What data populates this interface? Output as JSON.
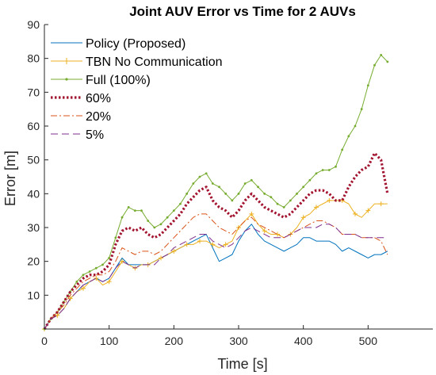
{
  "chart_data": {
    "type": "line",
    "title": "Joint AUV Error vs Time for 2 AUVs",
    "xlabel": "Time [s]",
    "ylabel": "Error [m]",
    "xlim": [
      0,
      600
    ],
    "ylim": [
      0,
      90
    ],
    "xticks": [
      0,
      100,
      200,
      300,
      400,
      500
    ],
    "yticks": [
      10,
      20,
      30,
      40,
      50,
      60,
      70,
      80,
      90
    ],
    "grid": false,
    "legend_position": "top-left",
    "series": [
      {
        "name": "Policy (Proposed)",
        "color": "#0072BD",
        "style": "solid",
        "marker": "none",
        "x": [
          0,
          10,
          20,
          30,
          40,
          50,
          60,
          70,
          80,
          90,
          100,
          110,
          120,
          130,
          140,
          150,
          160,
          170,
          180,
          190,
          200,
          210,
          220,
          230,
          240,
          250,
          260,
          270,
          280,
          290,
          300,
          310,
          320,
          330,
          340,
          350,
          360,
          370,
          380,
          390,
          400,
          410,
          420,
          430,
          440,
          450,
          460,
          470,
          480,
          490,
          500,
          510,
          520,
          530
        ],
        "y": [
          0,
          3,
          4,
          6,
          9,
          11,
          13,
          14,
          15,
          14,
          15,
          18,
          21,
          19,
          19,
          19,
          19,
          20,
          21,
          22,
          23,
          24,
          25,
          26,
          27,
          28,
          24,
          20,
          21,
          22,
          26,
          29,
          31,
          28,
          26,
          25,
          24,
          23,
          24,
          25,
          27,
          27,
          26,
          26,
          26,
          25,
          23,
          24,
          23,
          22,
          21,
          22,
          22,
          23
        ]
      },
      {
        "name": "TBN No Communication",
        "color": "#EDB120",
        "style": "solid",
        "marker": "plus",
        "x": [
          0,
          10,
          20,
          30,
          40,
          50,
          60,
          70,
          80,
          90,
          100,
          110,
          120,
          130,
          140,
          150,
          160,
          170,
          180,
          190,
          200,
          210,
          220,
          230,
          240,
          250,
          260,
          270,
          280,
          290,
          300,
          310,
          320,
          330,
          340,
          350,
          360,
          370,
          380,
          390,
          400,
          410,
          420,
          430,
          440,
          450,
          460,
          470,
          480,
          490,
          500,
          510,
          520,
          530
        ],
        "y": [
          0,
          3,
          4,
          6,
          9,
          11,
          12,
          14,
          15,
          13,
          14,
          17,
          20,
          19,
          18,
          19,
          19,
          20,
          21,
          22,
          23,
          24,
          25,
          25,
          26,
          26,
          25,
          24,
          25,
          26,
          30,
          32,
          34,
          31,
          29,
          28,
          28,
          27,
          28,
          30,
          33,
          34,
          36,
          37,
          38,
          38,
          38,
          37,
          34,
          33,
          35,
          37,
          37,
          37
        ]
      },
      {
        "name": "Full (100%)",
        "color": "#77AC30",
        "style": "solid",
        "marker": "dot",
        "x": [
          0,
          10,
          20,
          30,
          40,
          50,
          60,
          70,
          80,
          90,
          100,
          110,
          120,
          130,
          140,
          150,
          160,
          170,
          180,
          190,
          200,
          210,
          220,
          230,
          240,
          250,
          260,
          270,
          280,
          290,
          300,
          310,
          320,
          330,
          340,
          350,
          360,
          370,
          380,
          390,
          400,
          410,
          420,
          430,
          440,
          450,
          460,
          470,
          480,
          490,
          500,
          510,
          520,
          530
        ],
        "y": [
          0,
          3,
          5,
          8,
          11,
          14,
          16,
          17,
          18,
          19,
          21,
          27,
          33,
          36,
          35,
          35,
          32,
          30,
          31,
          33,
          35,
          37,
          40,
          43,
          45,
          46,
          43,
          42,
          40,
          38,
          40,
          43,
          44,
          42,
          40,
          39,
          37,
          36,
          38,
          40,
          42,
          44,
          46,
          47,
          47,
          48,
          53,
          57,
          60,
          65,
          72,
          78,
          81,
          79
        ]
      },
      {
        "name": "60%",
        "color": "#A2142F",
        "style": "dotted",
        "marker": "none",
        "x": [
          0,
          10,
          20,
          30,
          40,
          50,
          60,
          70,
          80,
          90,
          100,
          110,
          120,
          130,
          140,
          150,
          160,
          170,
          180,
          190,
          200,
          210,
          220,
          230,
          240,
          250,
          260,
          270,
          280,
          290,
          300,
          310,
          320,
          330,
          340,
          350,
          360,
          370,
          380,
          390,
          400,
          410,
          420,
          430,
          440,
          450,
          460,
          470,
          480,
          490,
          500,
          510,
          520,
          530
        ],
        "y": [
          0,
          3,
          5,
          8,
          11,
          13,
          15,
          16,
          16,
          17,
          19,
          25,
          29,
          30,
          29,
          30,
          28,
          27,
          28,
          30,
          32,
          34,
          37,
          39,
          41,
          42,
          38,
          36,
          35,
          33,
          35,
          38,
          40,
          38,
          36,
          35,
          34,
          33,
          34,
          36,
          38,
          40,
          41,
          41,
          40,
          38,
          38,
          42,
          45,
          47,
          48,
          52,
          50,
          40
        ]
      },
      {
        "name": "20%",
        "color": "#D95319",
        "style": "dashdot",
        "marker": "none",
        "x": [
          0,
          10,
          20,
          30,
          40,
          50,
          60,
          70,
          80,
          90,
          100,
          110,
          120,
          130,
          140,
          150,
          160,
          170,
          180,
          190,
          200,
          210,
          220,
          230,
          240,
          250,
          260,
          270,
          280,
          290,
          300,
          310,
          320,
          330,
          340,
          350,
          360,
          370,
          380,
          390,
          400,
          410,
          420,
          430,
          440,
          450,
          460,
          470,
          480,
          490,
          500,
          510,
          520,
          530
        ],
        "y": [
          0,
          3,
          5,
          7,
          10,
          12,
          14,
          15,
          16,
          16,
          17,
          20,
          24,
          23,
          22,
          23,
          23,
          22,
          23,
          25,
          27,
          29,
          31,
          33,
          34,
          34,
          32,
          30,
          29,
          28,
          30,
          32,
          33,
          31,
          30,
          29,
          28,
          27,
          28,
          29,
          30,
          31,
          32,
          32,
          31,
          30,
          28,
          28,
          28,
          27,
          27,
          27,
          26,
          22
        ]
      },
      {
        "name": "5%",
        "color": "#7E2F8E",
        "style": "dashed",
        "marker": "none",
        "x": [
          0,
          10,
          20,
          30,
          40,
          50,
          60,
          70,
          80,
          90,
          100,
          110,
          120,
          130,
          140,
          150,
          160,
          170,
          180,
          190,
          200,
          210,
          220,
          230,
          240,
          250,
          260,
          270,
          280,
          290,
          300,
          310,
          320,
          330,
          340,
          350,
          360,
          370,
          380,
          390,
          400,
          410,
          420,
          430,
          440,
          450,
          460,
          470,
          480,
          490,
          500,
          510,
          520,
          530
        ],
        "y": [
          0,
          3,
          4,
          6,
          9,
          11,
          13,
          14,
          15,
          14,
          15,
          18,
          20,
          19,
          18,
          19,
          19,
          19,
          21,
          22,
          24,
          25,
          26,
          27,
          28,
          28,
          26,
          25,
          24,
          25,
          27,
          29,
          30,
          29,
          28,
          27,
          27,
          27,
          28,
          29,
          30,
          30,
          30,
          31,
          31,
          30,
          28,
          28,
          28,
          27,
          27,
          27,
          27,
          27
        ]
      }
    ]
  }
}
